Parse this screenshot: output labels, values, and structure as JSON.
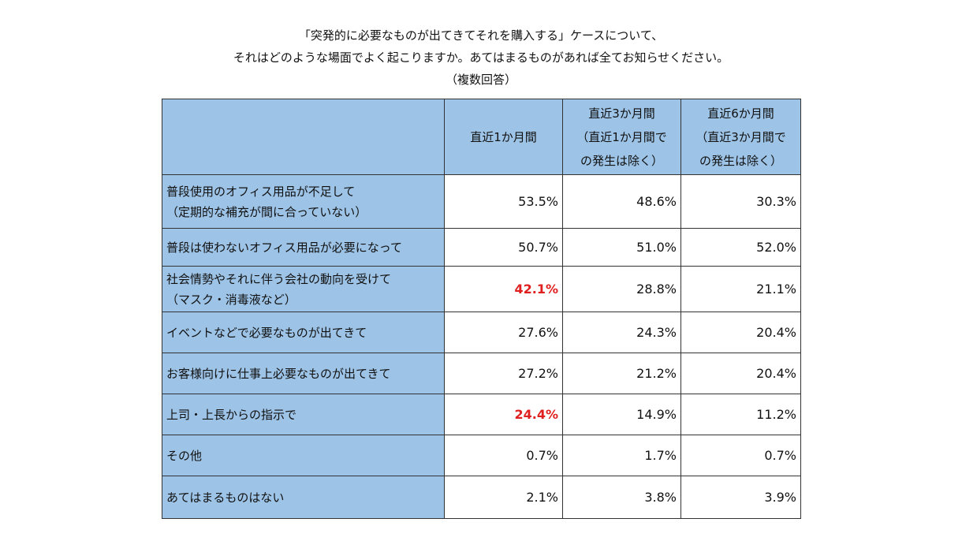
{
  "title": [
    "「突発的に必要なものが出てきてそれを購入する」ケースについて、",
    "それはどのような場面でよく起こりますか。あてはまるものがあれば全てお知らせください。",
    "（複数回答）"
  ],
  "table": {
    "header": [
      [
        "直近1か月間"
      ],
      [
        "直近3か月間",
        "（直近1か月間で",
        "の発生は除く）"
      ],
      [
        "直近6か月間",
        "（直近3か月間で",
        "の発生は除く）"
      ]
    ],
    "highlight_color": "#e0201f",
    "rows": [
      {
        "label": [
          "普段使用のオフィス用品が不足して",
          "（定期的な補充が間に合っていない）"
        ],
        "values": [
          "53.5%",
          "48.6%",
          "30.3%"
        ],
        "highlight": [
          false,
          false,
          false
        ]
      },
      {
        "label": [
          "普段は使わないオフィス用品が必要になって"
        ],
        "values": [
          "50.7%",
          "51.0%",
          "52.0%"
        ],
        "highlight": [
          false,
          false,
          false
        ]
      },
      {
        "label": [
          "社会情勢やそれに伴う会社の動向を受けて",
          "（マスク・消毒液など）"
        ],
        "values": [
          "42.1%",
          "28.8%",
          "21.1%"
        ],
        "highlight": [
          true,
          false,
          false
        ]
      },
      {
        "label": [
          "イベントなどで必要なものが出てきて"
        ],
        "values": [
          "27.6%",
          "24.3%",
          "20.4%"
        ],
        "highlight": [
          false,
          false,
          false
        ]
      },
      {
        "label": [
          "お客様向けに仕事上必要なものが出てきて"
        ],
        "values": [
          "27.2%",
          "21.2%",
          "20.4%"
        ],
        "highlight": [
          false,
          false,
          false
        ]
      },
      {
        "label": [
          "上司・上長からの指示で"
        ],
        "values": [
          "24.4%",
          "14.9%",
          "11.2%"
        ],
        "highlight": [
          true,
          false,
          false
        ]
      },
      {
        "label": [
          "その他"
        ],
        "values": [
          "0.7%",
          "1.7%",
          "0.7%"
        ],
        "highlight": [
          false,
          false,
          false
        ]
      },
      {
        "label": [
          "あてはまるものはない"
        ],
        "values": [
          "2.1%",
          "3.8%",
          "3.9%"
        ],
        "highlight": [
          false,
          false,
          false
        ]
      }
    ]
  }
}
